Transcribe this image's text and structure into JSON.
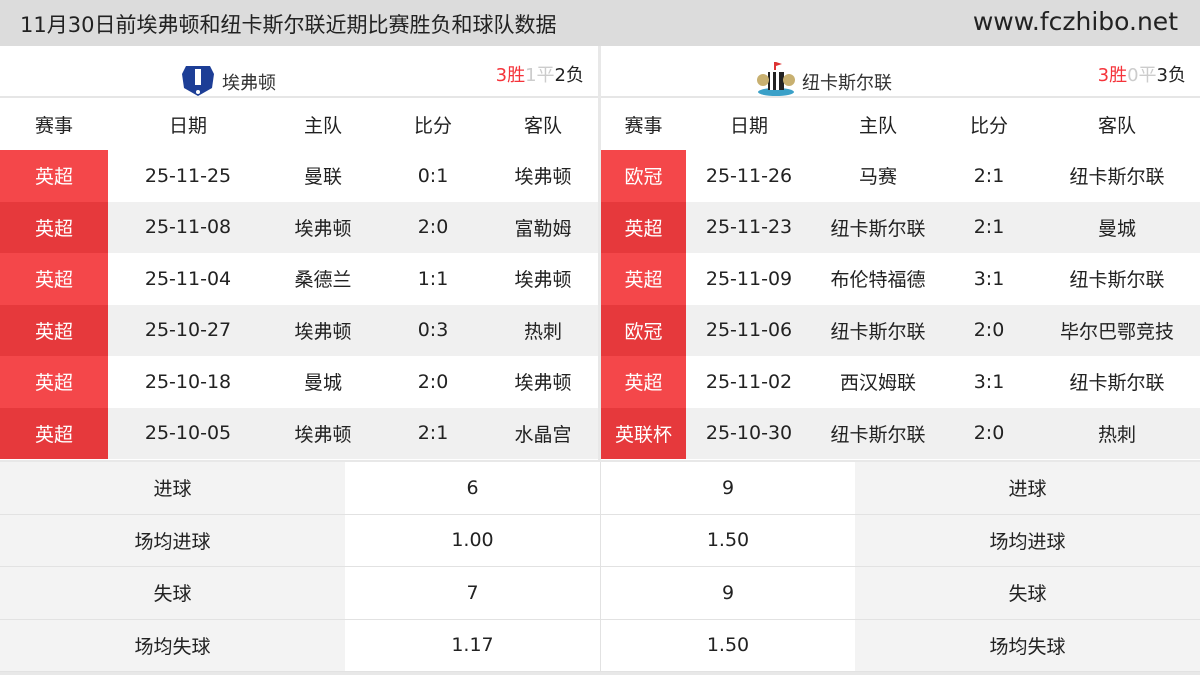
{
  "header": {
    "title": "11月30日前埃弗顿和纽卡斯尔联近期比赛胜负和球队数据",
    "site": "www.fczhibo.net"
  },
  "columns": [
    "赛事",
    "日期",
    "主队",
    "比分",
    "客队"
  ],
  "left": {
    "team": "埃弗顿",
    "logo_icon": "everton-crest-icon",
    "record": {
      "w": "3胜",
      "d": "1平",
      "l": "2负"
    },
    "matches": [
      [
        "英超",
        "25-11-25",
        "曼联",
        "0:1",
        "埃弗顿"
      ],
      [
        "英超",
        "25-11-08",
        "埃弗顿",
        "2:0",
        "富勒姆"
      ],
      [
        "英超",
        "25-11-04",
        "桑德兰",
        "1:1",
        "埃弗顿"
      ],
      [
        "英超",
        "25-10-27",
        "埃弗顿",
        "0:3",
        "热刺"
      ],
      [
        "英超",
        "25-10-18",
        "曼城",
        "2:0",
        "埃弗顿"
      ],
      [
        "英超",
        "25-10-05",
        "埃弗顿",
        "2:1",
        "水晶宫"
      ]
    ]
  },
  "right": {
    "team": "纽卡斯尔联",
    "logo_icon": "newcastle-crest-icon",
    "record": {
      "w": "3胜",
      "d": "0平",
      "l": "3负"
    },
    "matches": [
      [
        "欧冠",
        "25-11-26",
        "马赛",
        "2:1",
        "纽卡斯尔联"
      ],
      [
        "英超",
        "25-11-23",
        "纽卡斯尔联",
        "2:1",
        "曼城"
      ],
      [
        "英超",
        "25-11-09",
        "布伦特福德",
        "3:1",
        "纽卡斯尔联"
      ],
      [
        "欧冠",
        "25-11-06",
        "纽卡斯尔联",
        "2:0",
        "毕尔巴鄂竞技"
      ],
      [
        "英超",
        "25-11-02",
        "西汉姆联",
        "3:1",
        "纽卡斯尔联"
      ],
      [
        "英联杯",
        "25-10-30",
        "纽卡斯尔联",
        "2:0",
        "热刺"
      ]
    ]
  },
  "stats": [
    {
      "label": "进球",
      "left": "6",
      "right": "9"
    },
    {
      "label": "场均进球",
      "left": "1.00",
      "right": "1.50"
    },
    {
      "label": "失球",
      "left": "7",
      "right": "9"
    },
    {
      "label": "场均失球",
      "left": "1.17",
      "right": "1.50"
    }
  ],
  "colors": {
    "comp_bg": "#f4474a",
    "win": "#f5333a",
    "draw": "#cccccc"
  }
}
